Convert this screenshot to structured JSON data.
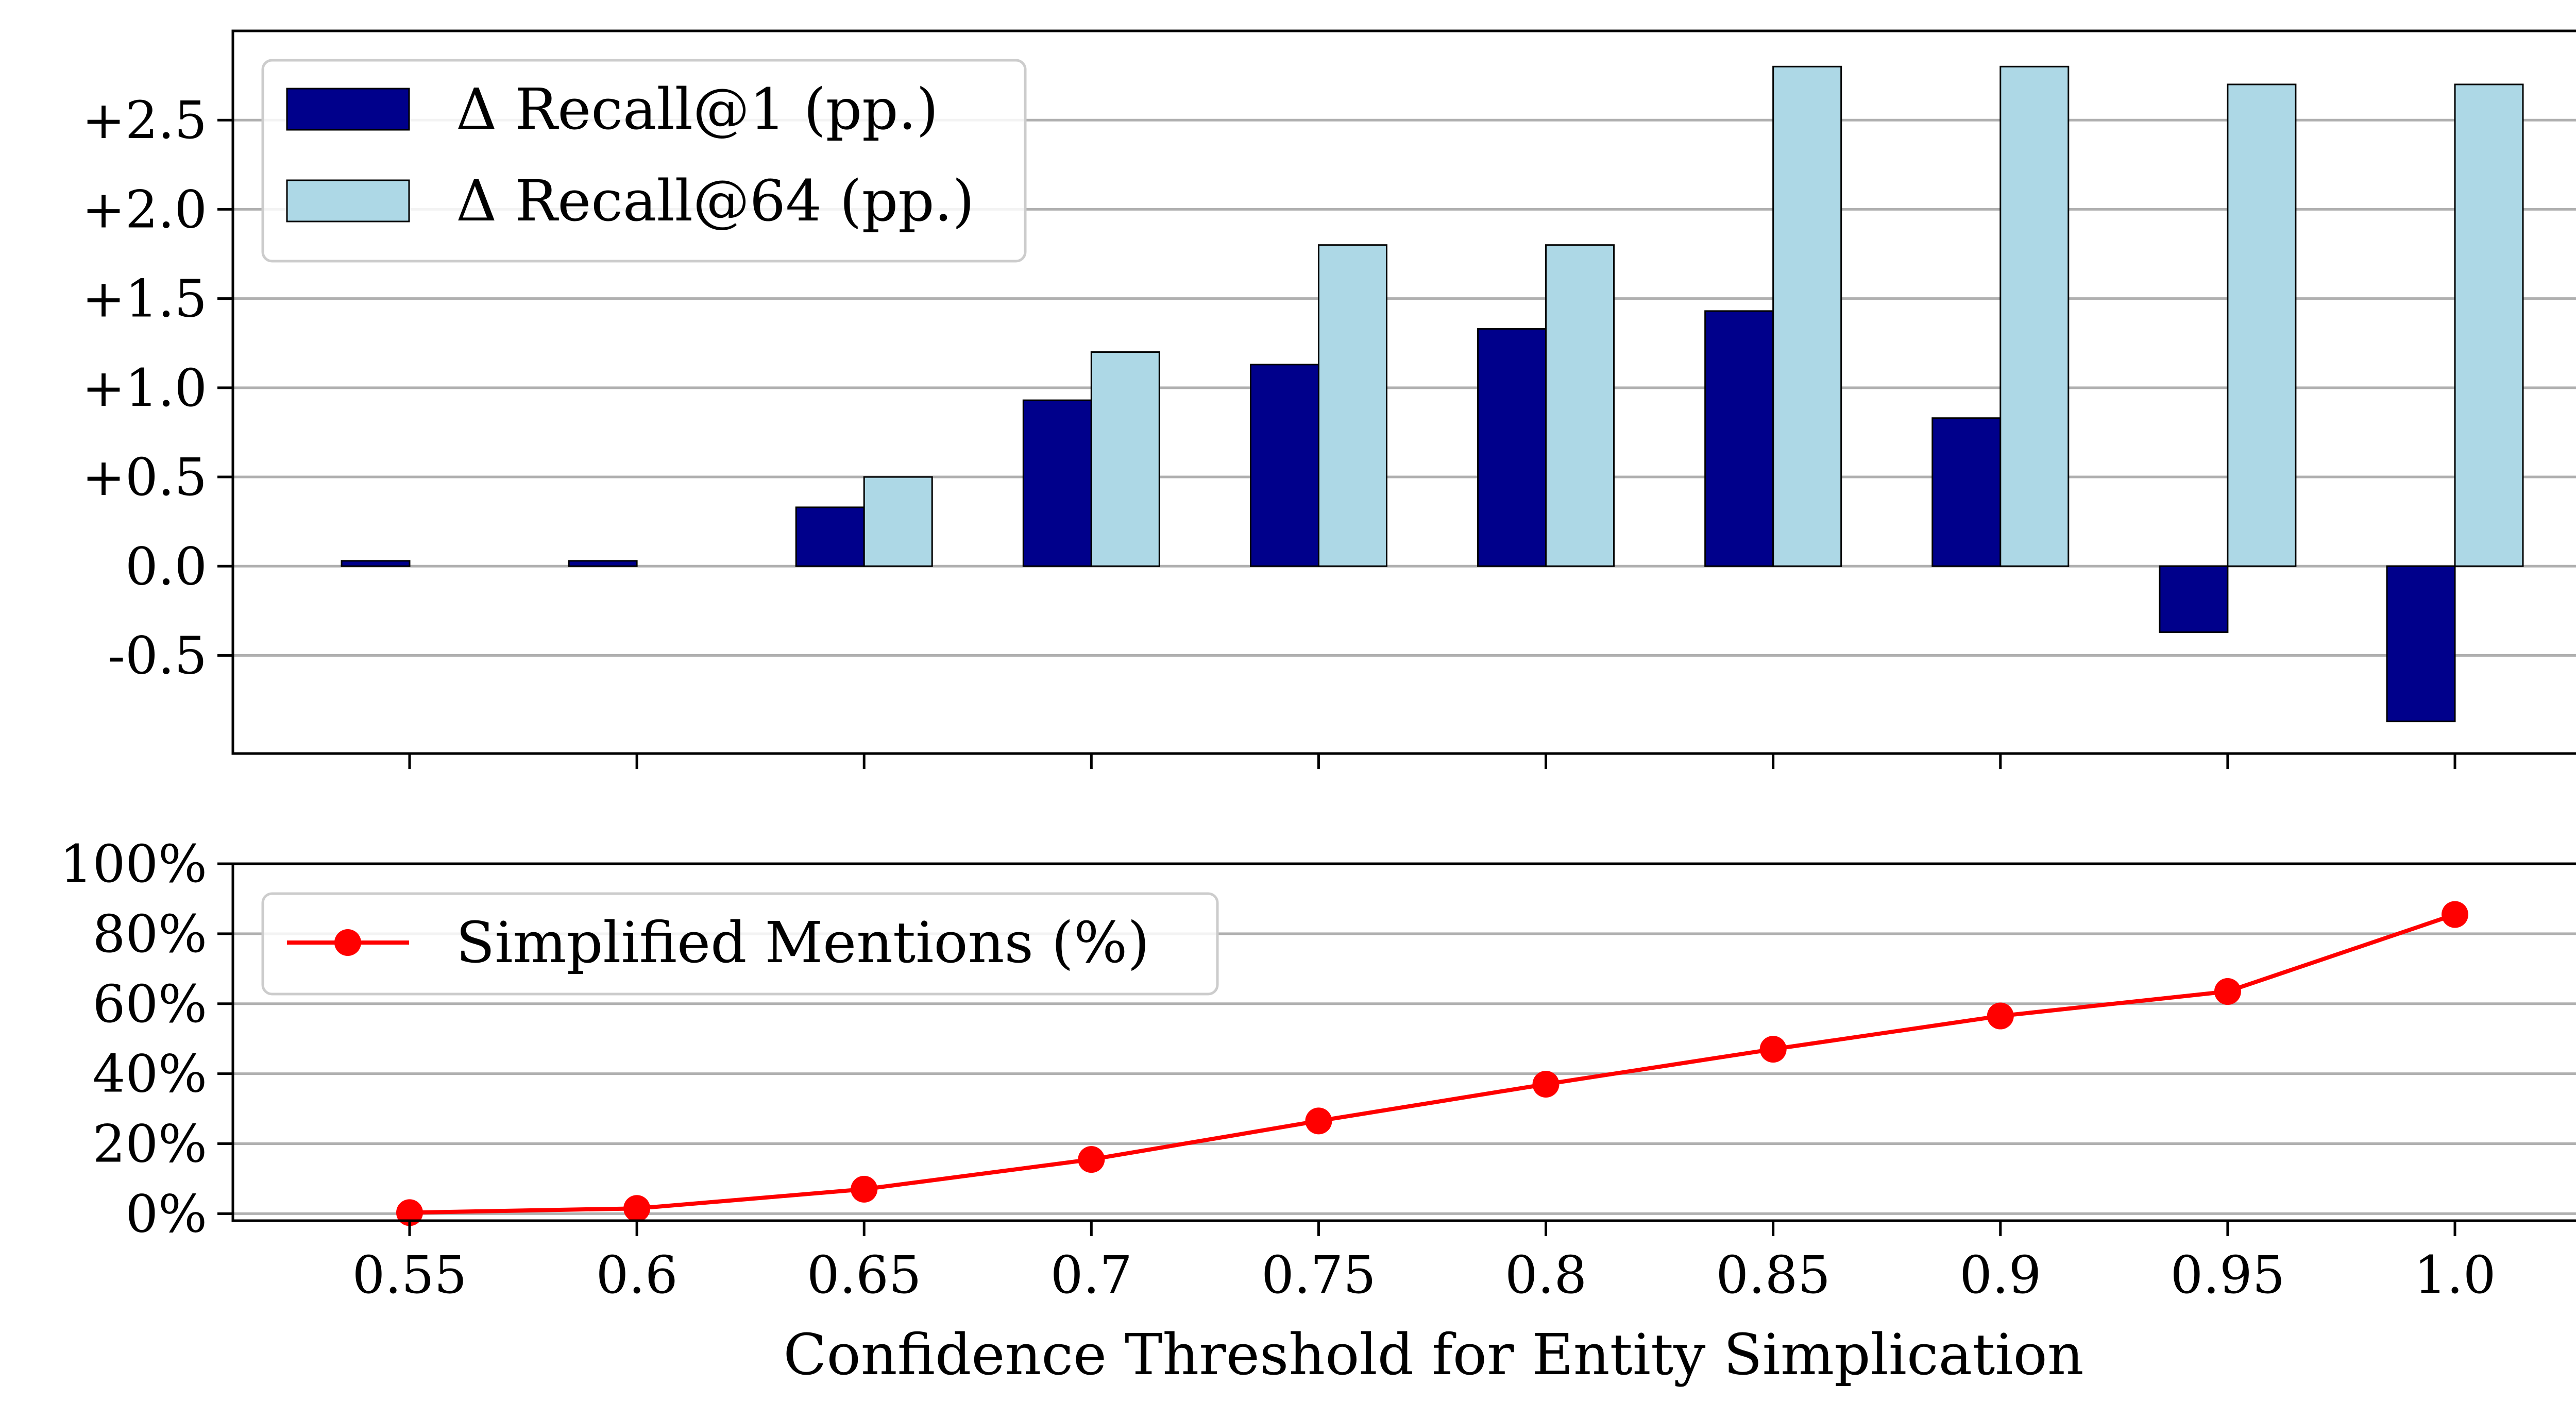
{
  "chart_data": [
    {
      "type": "bar",
      "categories": [
        "0.55",
        "0.6",
        "0.65",
        "0.7",
        "0.75",
        "0.8",
        "0.85",
        "0.9",
        "0.95",
        "1.0"
      ],
      "series": [
        {
          "name": "Δ Recall@1 (pp.)",
          "color": "#00008b",
          "values": [
            0.03,
            0.03,
            0.33,
            0.93,
            1.13,
            1.33,
            1.43,
            0.83,
            -0.37,
            -0.87
          ]
        },
        {
          "name": "Δ Recall@64 (pp.)",
          "color": "#add8e6",
          "values": [
            0.0,
            0.0,
            0.5,
            1.2,
            1.8,
            1.8,
            2.8,
            2.8,
            2.7,
            2.7
          ]
        }
      ],
      "ylim": [
        -1.05,
        3.0
      ],
      "yticks": [
        "+2.5",
        "+2.0",
        "+1.5",
        "+1.0",
        "+0.5",
        "0.0",
        "-0.5"
      ],
      "ytick_values": [
        2.5,
        2.0,
        1.5,
        1.0,
        0.5,
        0.0,
        -0.5
      ],
      "grid": "y",
      "legend_position": "top-left"
    },
    {
      "type": "line",
      "x": [
        "0.55",
        "0.6",
        "0.65",
        "0.7",
        "0.75",
        "0.8",
        "0.85",
        "0.9",
        "0.95",
        "1.0"
      ],
      "series": [
        {
          "name": "Simplified Mentions (%)",
          "color": "#ff0000",
          "values": [
            0.3,
            1.5,
            7.0,
            15.5,
            26.5,
            37.0,
            47.0,
            56.5,
            63.5,
            85.5
          ]
        }
      ],
      "ylim": [
        -2,
        100
      ],
      "yticks": [
        "100%",
        "80%",
        "60%",
        "40%",
        "20%",
        "0%"
      ],
      "ytick_values": [
        100,
        80,
        60,
        40,
        20,
        0
      ],
      "xlabel": "Confidence Threshold for Entity Simplication",
      "grid": "y",
      "legend_position": "top-left"
    }
  ]
}
